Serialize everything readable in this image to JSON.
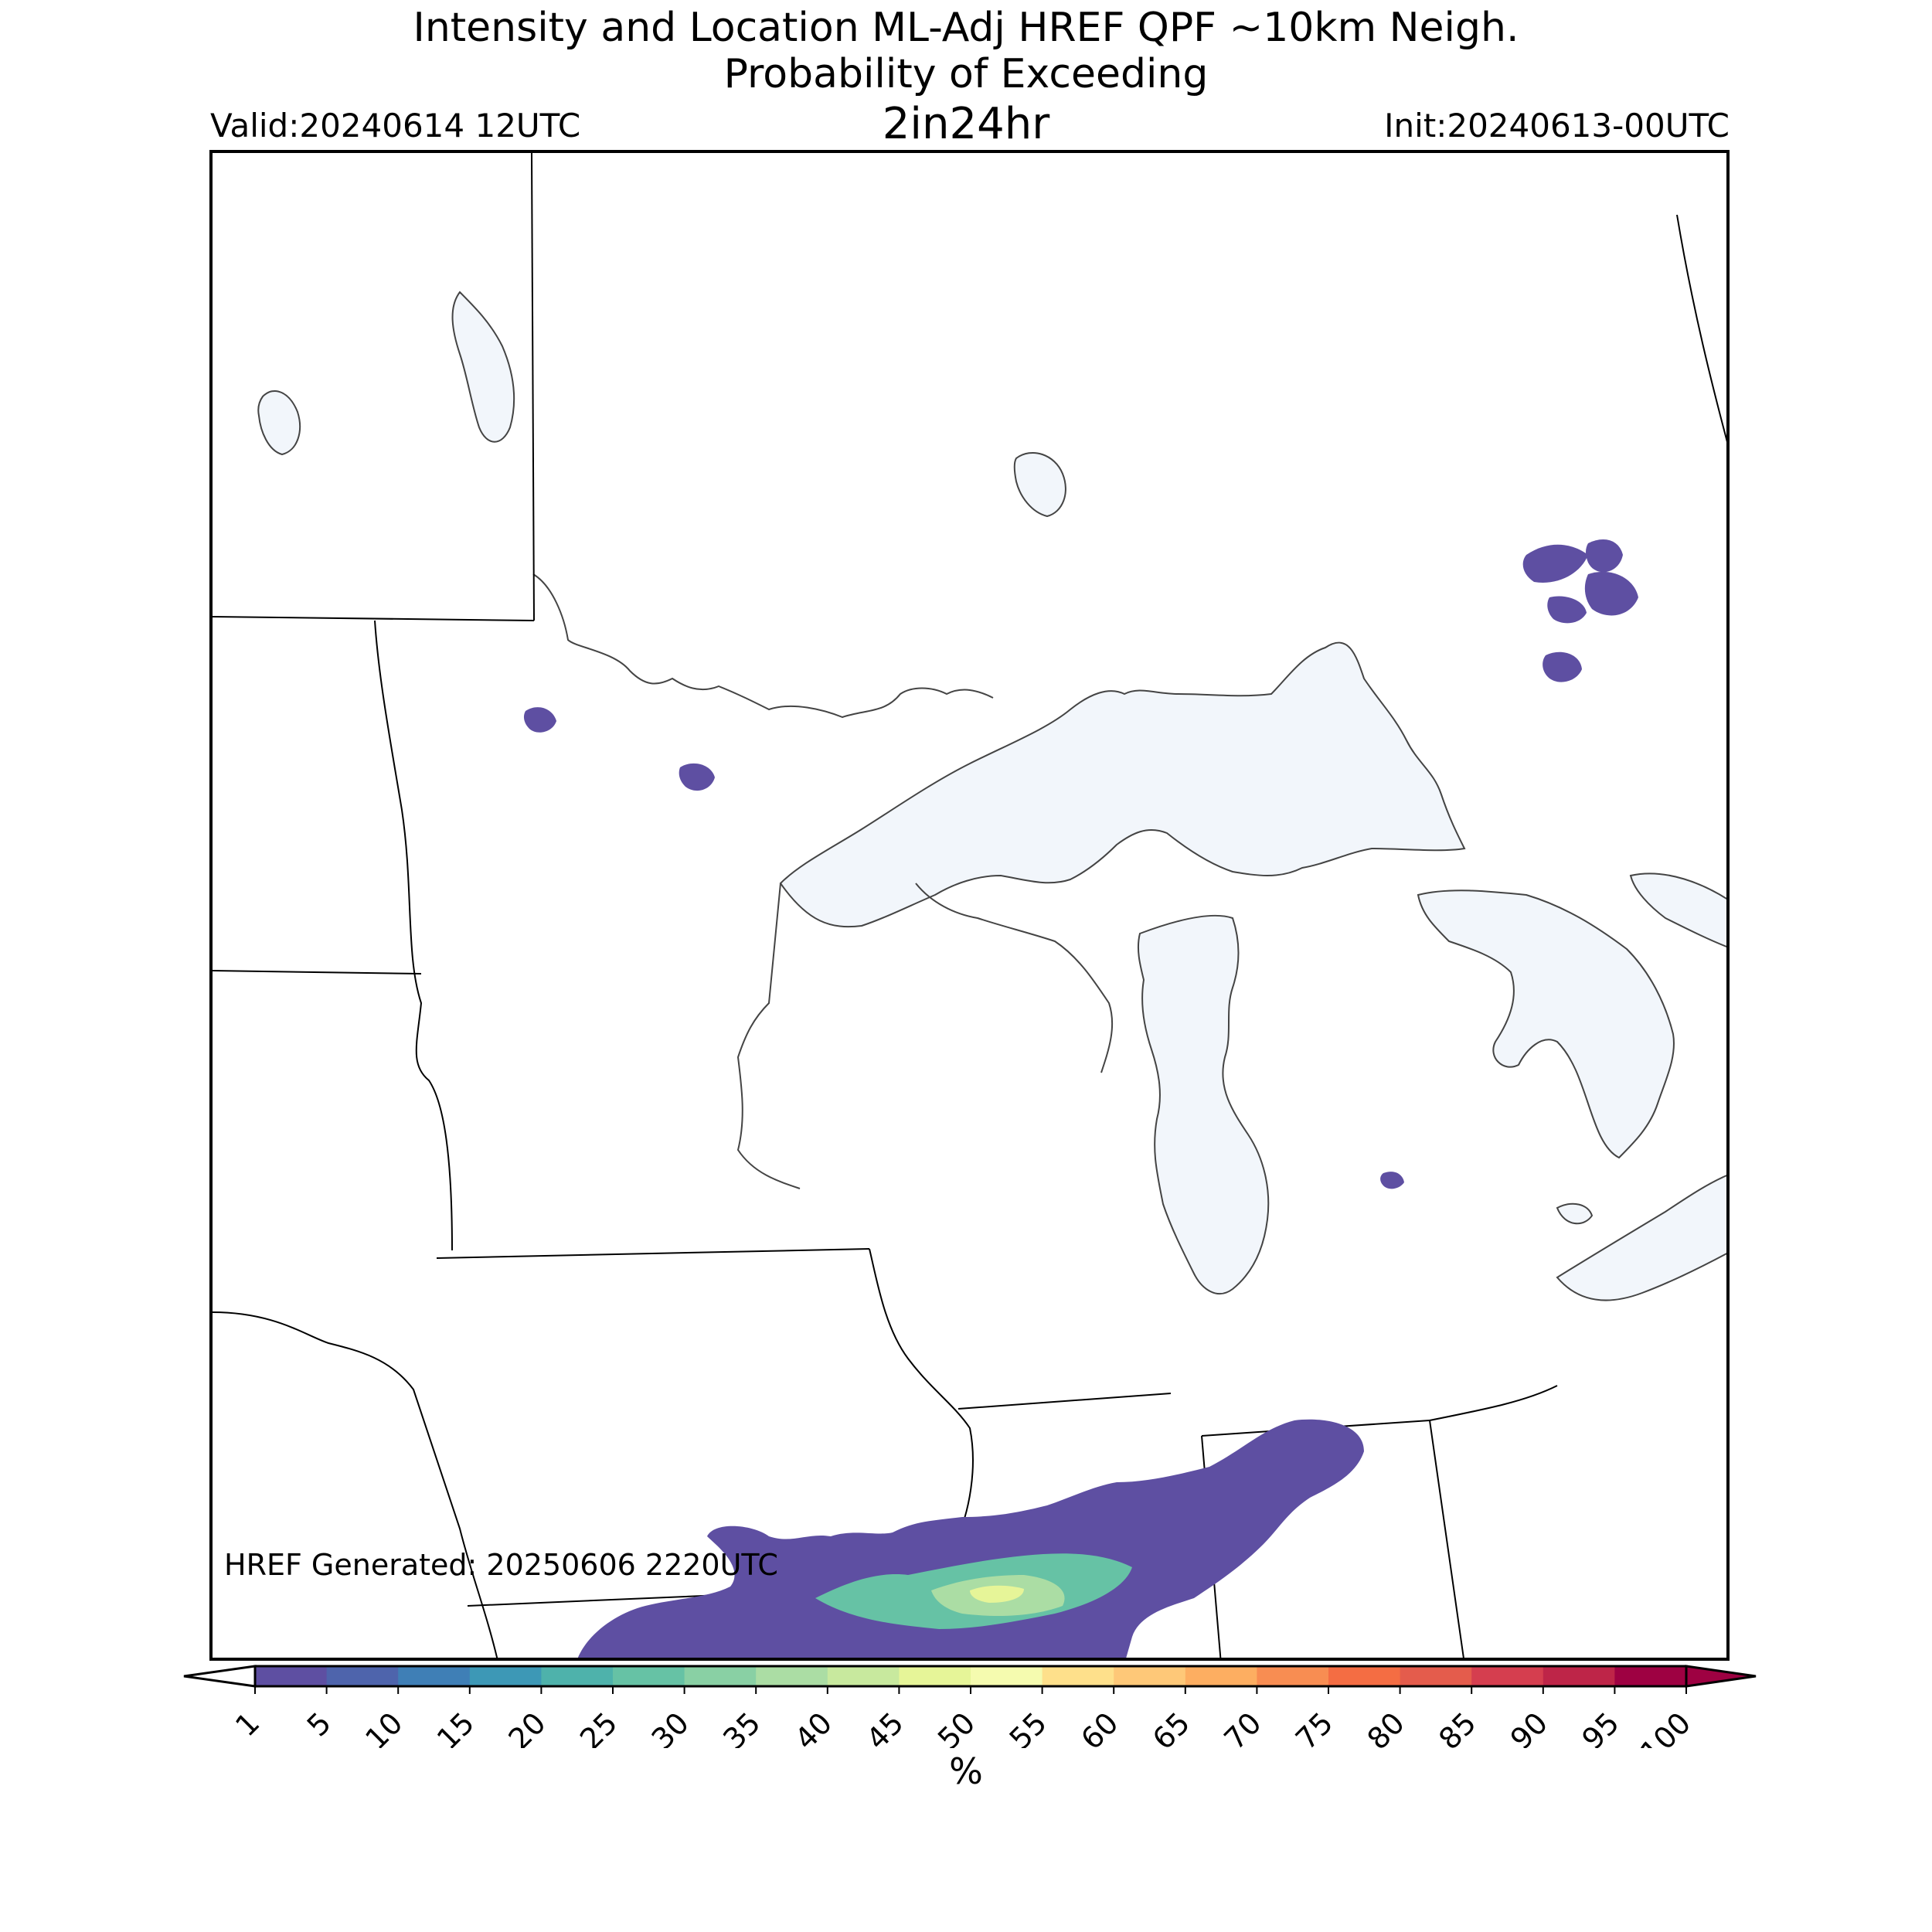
{
  "header": {
    "title_line1": "Intensity and Location ML-Adj HREF QPF ~10km Neigh.",
    "title_line2": "Probability of Exceeding",
    "title_line3": "2in24hr",
    "valid": "Valid:20240614 12UTC",
    "init": "Init:20240613-00UTC"
  },
  "footer": {
    "generated": "HREF Generated: 20250606 2220UTC"
  },
  "colorbar": {
    "unit": "%",
    "ticks": [
      "1",
      "5",
      "10",
      "15",
      "20",
      "25",
      "30",
      "35",
      "40",
      "45",
      "50",
      "55",
      "60",
      "65",
      "70",
      "75",
      "80",
      "85",
      "90",
      "95",
      "100"
    ],
    "colors": [
      "#5e4fa2",
      "#4e64ac",
      "#3f7fb6",
      "#3d98b6",
      "#4eb2ab",
      "#66c2a5",
      "#89d0a4",
      "#abdda4",
      "#c8e99e",
      "#e6f598",
      "#f5fbaf",
      "#fee08b",
      "#fec878",
      "#fdae61",
      "#f88d52",
      "#f46d43",
      "#e45c4c",
      "#d53e4f",
      "#be2548",
      "#9e0142"
    ],
    "under_color": "#ffffff",
    "over_color": "#9e0142"
  },
  "colors": {
    "water": "#f2f6fb",
    "boundary": "#000000",
    "coast": "#444444"
  }
}
